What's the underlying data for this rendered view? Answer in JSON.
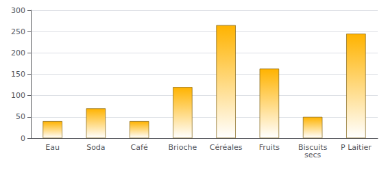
{
  "chart_data": {
    "type": "bar",
    "categories": [
      "Eau",
      "Soda",
      "Café",
      "Brioche",
      "Céréales",
      "Fruits",
      "Biscuits\nsecs",
      "P Laitier"
    ],
    "values": [
      40,
      70,
      40,
      120,
      265,
      163,
      50,
      245
    ],
    "color": "#FFB300",
    "ylim": [
      0,
      300
    ],
    "yticks": [
      0,
      50,
      100,
      150,
      200,
      250,
      300
    ],
    "grid": true
  }
}
